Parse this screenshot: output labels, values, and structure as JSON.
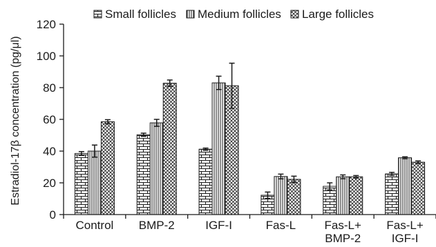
{
  "chart_data": {
    "type": "bar",
    "title": "",
    "xlabel": "",
    "ylabel": "Estradiol-17β concentration (pg/μl)",
    "ylim": [
      0,
      120
    ],
    "yticks": [
      0,
      20,
      40,
      60,
      80,
      100,
      120
    ],
    "grid": false,
    "legend_position": "top",
    "categories": [
      [
        "Control"
      ],
      [
        "BMP-2"
      ],
      [
        "IGF-I"
      ],
      [
        "Fas-L"
      ],
      [
        "Fas-L+",
        "BMP-2"
      ],
      [
        "Fas-L+",
        "IGF-I"
      ]
    ],
    "series": [
      {
        "name": "Small follicles",
        "pattern": "brick",
        "values": [
          38.5,
          50.3,
          41.2,
          12.2,
          17.8,
          25.6
        ],
        "errors": [
          1.2,
          1.0,
          0.7,
          2.0,
          2.2,
          1.0
        ]
      },
      {
        "name": "Medium follicles",
        "pattern": "vertical-lines",
        "values": [
          40.0,
          57.8,
          83.0,
          24.0,
          23.8,
          35.8
        ],
        "errors": [
          3.8,
          2.2,
          4.2,
          1.5,
          1.2,
          0.6
        ]
      },
      {
        "name": "Large follicles",
        "pattern": "crosshatch",
        "values": [
          58.5,
          82.8,
          81.2,
          22.2,
          23.8,
          33.0
        ],
        "errors": [
          1.3,
          2.0,
          14.2,
          2.0,
          0.8,
          0.8
        ]
      }
    ],
    "colors": {
      "axis": "#1a1a1a",
      "bar_fill": "#ffffff",
      "pattern_ink": "#1a1a1a"
    }
  }
}
